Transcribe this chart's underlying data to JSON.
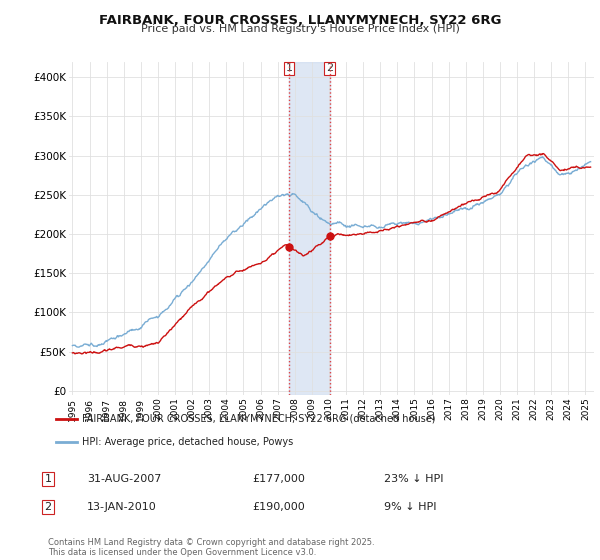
{
  "title_line1": "FAIRBANK, FOUR CROSSES, LLANYMYNECH, SY22 6RG",
  "title_line2": "Price paid vs. HM Land Registry's House Price Index (HPI)",
  "ylabel_ticks": [
    "£0",
    "£50K",
    "£100K",
    "£150K",
    "£200K",
    "£250K",
    "£300K",
    "£350K",
    "£400K"
  ],
  "ytick_values": [
    0,
    50000,
    100000,
    150000,
    200000,
    250000,
    300000,
    350000,
    400000
  ],
  "ylim": [
    -5000,
    420000
  ],
  "xlim_start": 1994.8,
  "xlim_end": 2025.5,
  "hpi_color": "#7aadd4",
  "price_color": "#cc1111",
  "marker1_date": 2007.66,
  "marker2_date": 2010.04,
  "sale1_price_val": 177000,
  "sale2_price_val": 190000,
  "sale1_date": "31-AUG-2007",
  "sale1_price": "£177,000",
  "sale1_vs": "23% ↓ HPI",
  "sale2_date": "13-JAN-2010",
  "sale2_price": "£190,000",
  "sale2_vs": "9% ↓ HPI",
  "legend_line1": "FAIRBANK, FOUR CROSSES, LLANYMYNECH, SY22 6RG (detached house)",
  "legend_line2": "HPI: Average price, detached house, Powys",
  "footer": "Contains HM Land Registry data © Crown copyright and database right 2025.\nThis data is licensed under the Open Government Licence v3.0.",
  "xtick_years": [
    1995,
    1996,
    1997,
    1998,
    1999,
    2000,
    2001,
    2002,
    2003,
    2004,
    2005,
    2006,
    2007,
    2008,
    2009,
    2010,
    2011,
    2012,
    2013,
    2014,
    2015,
    2016,
    2017,
    2018,
    2019,
    2020,
    2021,
    2022,
    2023,
    2024,
    2025
  ],
  "background_color": "#ffffff",
  "grid_color": "#e0e0e0"
}
